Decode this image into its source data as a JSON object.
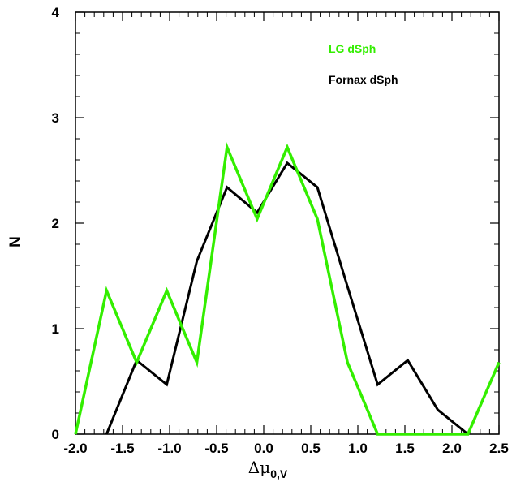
{
  "chart_data": {
    "type": "line",
    "title": "",
    "xlabel": {
      "main": "Δμ",
      "sub": "0,V"
    },
    "ylabel": "N",
    "xlim": [
      -2.0,
      2.5
    ],
    "ylim": [
      0,
      4
    ],
    "x_ticks": [
      "-2.0",
      "-1.5",
      "-1.0",
      "-0.5",
      "0.0",
      "0.5",
      "1.0",
      "1.5",
      "2.0",
      "2.5"
    ],
    "x_tick_values": [
      -2.0,
      -1.5,
      -1.0,
      -0.5,
      0.0,
      0.5,
      1.0,
      1.5,
      2.0,
      2.5
    ],
    "y_ticks": [
      "0",
      "1",
      "2",
      "3",
      "4"
    ],
    "y_tick_values": [
      0,
      1,
      2,
      3,
      4
    ],
    "grid": false,
    "legend_position": "top-right",
    "series": [
      {
        "name": "Fornax dSph",
        "color": "#000000",
        "x": [
          -1.67,
          -1.35,
          -1.03,
          -0.71,
          -0.39,
          -0.07,
          0.25,
          0.57,
          0.89,
          1.21,
          1.53,
          1.85,
          2.17
        ],
        "y": [
          0,
          0.7,
          0.47,
          1.64,
          2.34,
          2.1,
          2.57,
          2.34,
          1.4,
          0.47,
          0.7,
          0.23,
          0
        ]
      },
      {
        "name": "LG dSph",
        "color": "#33ee00",
        "x": [
          -2.0,
          -1.67,
          -1.35,
          -1.03,
          -0.71,
          -0.39,
          -0.07,
          0.25,
          0.57,
          0.89,
          1.21,
          1.53,
          1.85,
          2.17,
          2.5
        ],
        "y": [
          0,
          1.36,
          0.68,
          1.36,
          0.68,
          2.72,
          2.04,
          2.72,
          2.04,
          0.68,
          0,
          0,
          0,
          0,
          0.68
        ]
      }
    ]
  },
  "legend": [
    {
      "label": "LG dSph",
      "color": "#33ee00"
    },
    {
      "label": "Fornax dSph",
      "color": "#000000"
    }
  ]
}
